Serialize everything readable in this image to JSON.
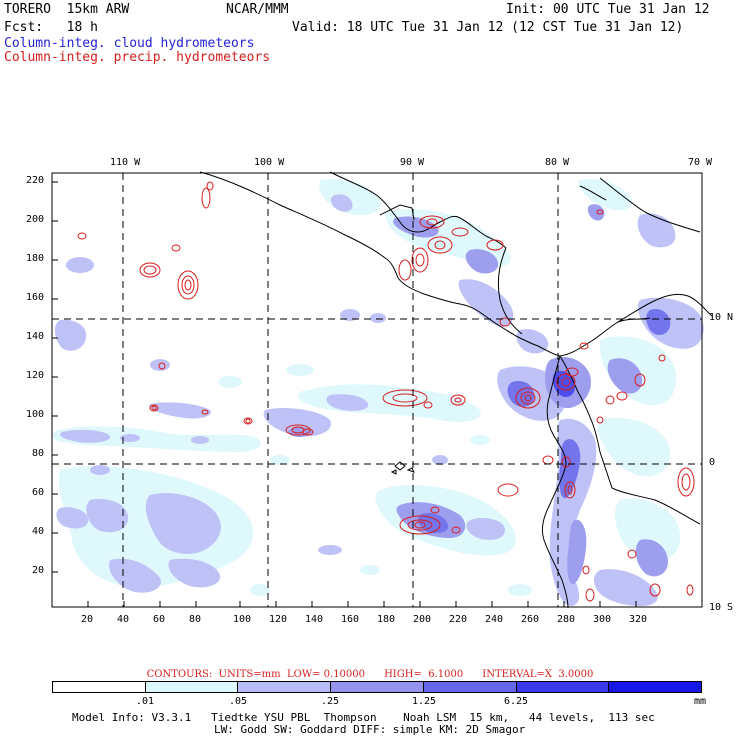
{
  "header": {
    "model": "TORERO  15km ARW",
    "org": "NCAR/MMM",
    "init": "Init: 00 UTC Tue 31 Jan 12",
    "fcst": "Fcst:   18 h",
    "valid": "Valid: 18 UTC Tue 31 Jan 12 (12 CST Tue 31 Jan 12)",
    "cloud_label": "Column-integ. cloud hydrometeors",
    "precip_label": "Column-integ. precip. hydrometeors"
  },
  "map": {
    "lon_labels": [
      "110 W",
      "100 W",
      "90 W",
      "80 W",
      "70 W"
    ],
    "lat_labels": [
      "10 N",
      "0",
      "10 S"
    ],
    "y_ticks": [
      "220",
      "200",
      "180",
      "160",
      "140",
      "120",
      "100",
      "80",
      "60",
      "40",
      "20"
    ],
    "x_ticks": [
      "20",
      "40",
      "60",
      "80",
      "100",
      "120",
      "140",
      "160",
      "180",
      "200",
      "220",
      "240",
      "260",
      "280",
      "300",
      "320"
    ]
  },
  "contour_info": "CONTOURS:  UNITS=mm  LOW= 0.10000      HIGH=  6.1000      INTERVAL=X  3.0000",
  "colorbar": {
    "colors": [
      "#ffffff",
      "#dcf8fc",
      "#b8bcf6",
      "#9494ee",
      "#6666ea",
      "#3a3aec",
      "#1717e6"
    ],
    "labels": [
      ".01",
      ".05",
      ".25",
      "1.25",
      "6.25"
    ],
    "units": "mm"
  },
  "footer": {
    "line1": "Model Info: V3.3.1   Tiedtke YSU PBL  Thompson    Noah LSM  15 km,   44 levels,  113 sec",
    "line2": "LW: Godd SW: Goddard DIFF: simple KM: 2D Smagor"
  }
}
